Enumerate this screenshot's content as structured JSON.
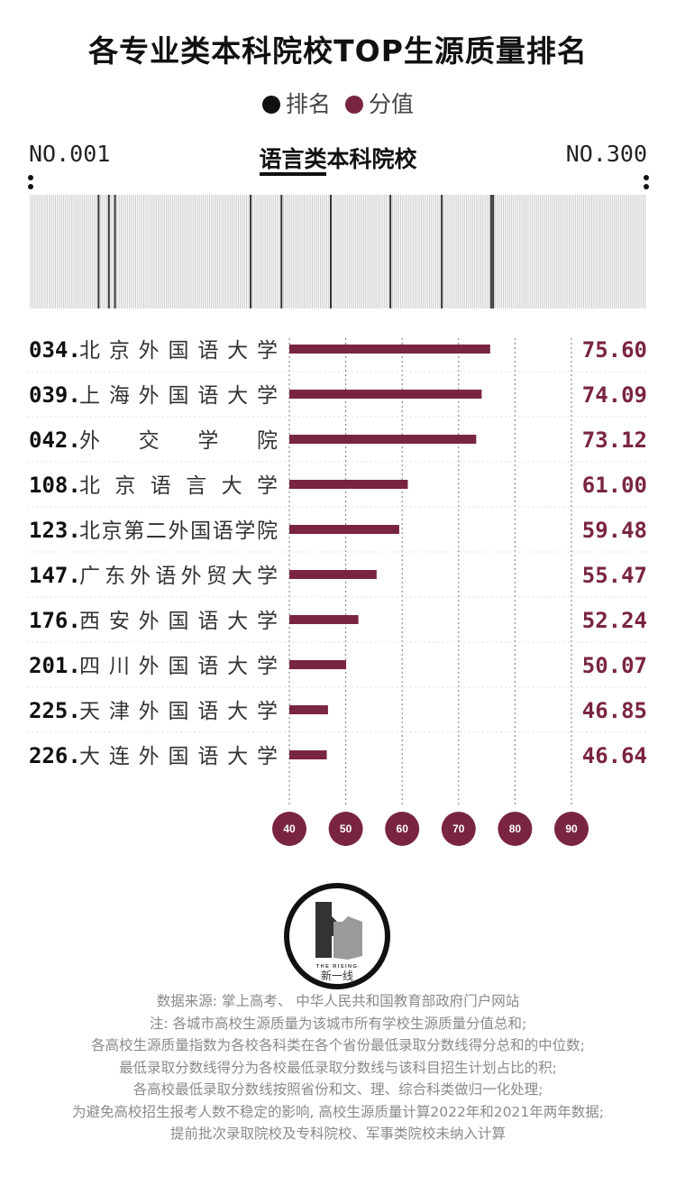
{
  "title": "各专业类本科院校TOP生源质量排名",
  "legend": [
    {
      "label": "排名",
      "color": "#111111"
    },
    {
      "label": "分值",
      "color": "#7a2540"
    }
  ],
  "range_start": "NO.001",
  "range_end": "NO.300",
  "subtitle": "语言类本科院校",
  "colors": {
    "bar": "#7a2540",
    "bubble": "#7a2540",
    "barcode_light": "#cccccc",
    "barcode_dark": "#333333"
  },
  "rank_strip": {
    "total": 300,
    "highlighted": [
      34,
      39,
      42,
      108,
      123,
      147,
      176,
      201,
      225,
      226
    ]
  },
  "chart_data": {
    "type": "bar",
    "orientation": "horizontal",
    "categories": [
      "034.北京外国语大学",
      "039.上海外国语大学",
      "042.外交学院",
      "108.北京语言大学",
      "123.北京第二外国语学院",
      "147.广东外语外贸大学",
      "176.西安外国语大学",
      "201.四川外国语大学",
      "225.天津外国语大学",
      "226.大连外国语大学"
    ],
    "ranks": [
      "034.",
      "039.",
      "042.",
      "108.",
      "123.",
      "147.",
      "176.",
      "201.",
      "225.",
      "226."
    ],
    "schools": [
      "北京外国语大学",
      "上海外国语大学",
      "外交学院",
      "北京语言大学",
      "北京第二外国语学院",
      "广东外语外贸大学",
      "西安外国语大学",
      "四川外国语大学",
      "天津外国语大学",
      "大连外国语大学"
    ],
    "values": [
      75.6,
      74.09,
      73.12,
      61.0,
      59.48,
      55.47,
      52.24,
      50.07,
      46.85,
      46.64
    ],
    "value_labels": [
      "75.60",
      "74.09",
      "73.12",
      "61.00",
      "59.48",
      "55.47",
      "52.24",
      "50.07",
      "46.85",
      "46.64"
    ],
    "xlim": [
      40,
      90
    ],
    "ticks": [
      "40",
      "50",
      "60",
      "70",
      "80",
      "90"
    ],
    "grid": true
  },
  "logo": {
    "brand_en": "THE RISING",
    "brand_cn": "新一线"
  },
  "notes": [
    "数据来源: 掌上高考、 中华人民共和国教育部政府门户网站",
    "注: 各城市高校生源质量为该城市所有学校生源质量分值总和;",
    "各高校生源质量指数为各校各科类在各个省份最低录取分数线得分总和的中位数;",
    "最低录取分数线得分为各校最低录取分数线与该科目招生计划占比的积;",
    "各高校最低录取分数线按照省份和文、理、综合科类做归一化处理;",
    "为避免高校招生报考人数不稳定的影响, 高校生源质量计算2022年和2021年两年数据;",
    "提前批次录取院校及专科院校、军事类院校未纳入计算"
  ]
}
